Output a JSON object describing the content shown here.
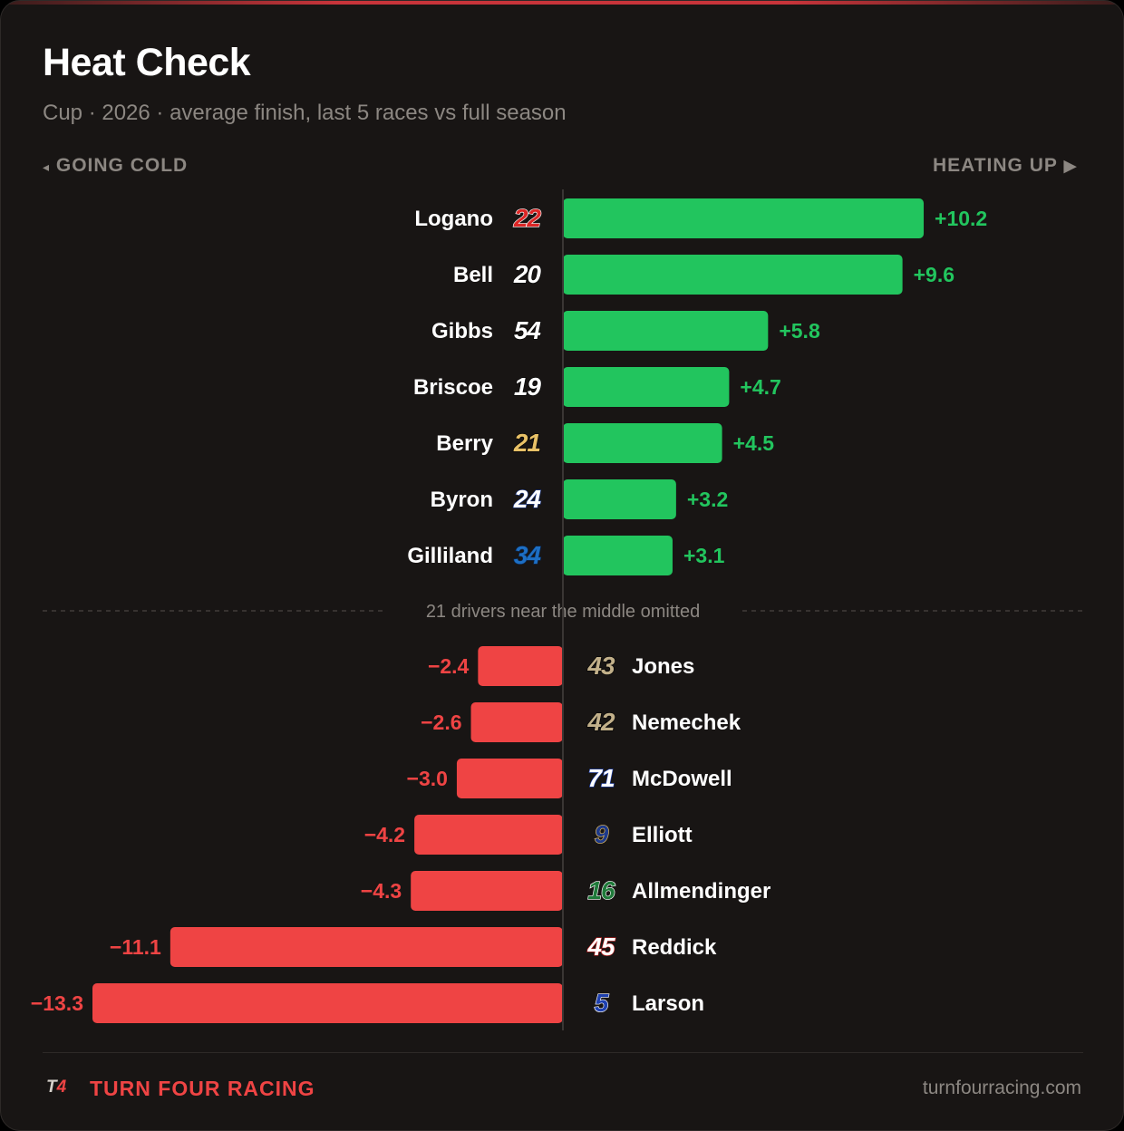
{
  "header": {
    "title": "Heat Check",
    "subtitle": "Cup · 2026 · average finish, last 5 races vs full season",
    "left_direction": "GOING COLD",
    "right_direction": "HEATING UP",
    "left_arrow_icon": "◂",
    "right_arrow_icon": "▶"
  },
  "chart_data": {
    "type": "bar",
    "orientation": "horizontal-diverging",
    "xlim": [
      -13.3,
      10.2
    ],
    "positive_color": "#22c55e",
    "negative_color": "#ef4444",
    "divider_label": "21 drivers near the middle omitted",
    "heating_up": [
      {
        "driver": "Logano",
        "number": "22",
        "value": 10.2,
        "label": "+10.2",
        "number_color": "#dc2626",
        "number_outline": "#ffffff"
      },
      {
        "driver": "Bell",
        "number": "20",
        "value": 9.6,
        "label": "+9.6",
        "number_color": "#ffffff",
        "number_outline": "#000000"
      },
      {
        "driver": "Gibbs",
        "number": "54",
        "value": 5.8,
        "label": "+5.8",
        "number_color": "#ffffff",
        "number_outline": "#000000"
      },
      {
        "driver": "Briscoe",
        "number": "19",
        "value": 4.7,
        "label": "+4.7",
        "number_color": "#ffffff",
        "number_outline": "#000000"
      },
      {
        "driver": "Berry",
        "number": "21",
        "value": 4.5,
        "label": "+4.5",
        "number_color": "#e8c167",
        "number_outline": "#000000"
      },
      {
        "driver": "Byron",
        "number": "24",
        "value": 3.2,
        "label": "+3.2",
        "number_color": "#ffffff",
        "number_outline": "#1e3a8a"
      },
      {
        "driver": "Gilliland",
        "number": "34",
        "value": 3.1,
        "label": "+3.1",
        "number_color": "#1d6fc4",
        "number_outline": "#0b2a55"
      }
    ],
    "going_cold": [
      {
        "driver": "Jones",
        "number": "43",
        "value": -2.4,
        "label": "−2.4",
        "number_color": "#c2b08a",
        "number_outline": "#000000"
      },
      {
        "driver": "Nemechek",
        "number": "42",
        "value": -2.6,
        "label": "−2.6",
        "number_color": "#c2b08a",
        "number_outline": "#000000"
      },
      {
        "driver": "McDowell",
        "number": "71",
        "value": -3.0,
        "label": "−3.0",
        "number_color": "#ffffff",
        "number_outline": "#1e40af"
      },
      {
        "driver": "Elliott",
        "number": "9",
        "value": -4.2,
        "label": "−4.2",
        "number_color": "#1e3a8a",
        "number_outline": "#e8c167"
      },
      {
        "driver": "Allmendinger",
        "number": "16",
        "value": -4.3,
        "label": "−4.3",
        "number_color": "#1f7a3a",
        "number_outline": "#ffffff"
      },
      {
        "driver": "Reddick",
        "number": "45",
        "value": -11.1,
        "label": "−11.1",
        "number_color": "#ffffff",
        "number_outline": "#b91c1c"
      },
      {
        "driver": "Larson",
        "number": "5",
        "value": -13.3,
        "label": "−13.3",
        "number_color": "#1e40af",
        "number_outline": "#ffffff"
      }
    ]
  },
  "footer": {
    "logo_t": "T",
    "logo_4": "4",
    "brand": "TURN FOUR RACING",
    "site": "turnfourracing.com"
  }
}
